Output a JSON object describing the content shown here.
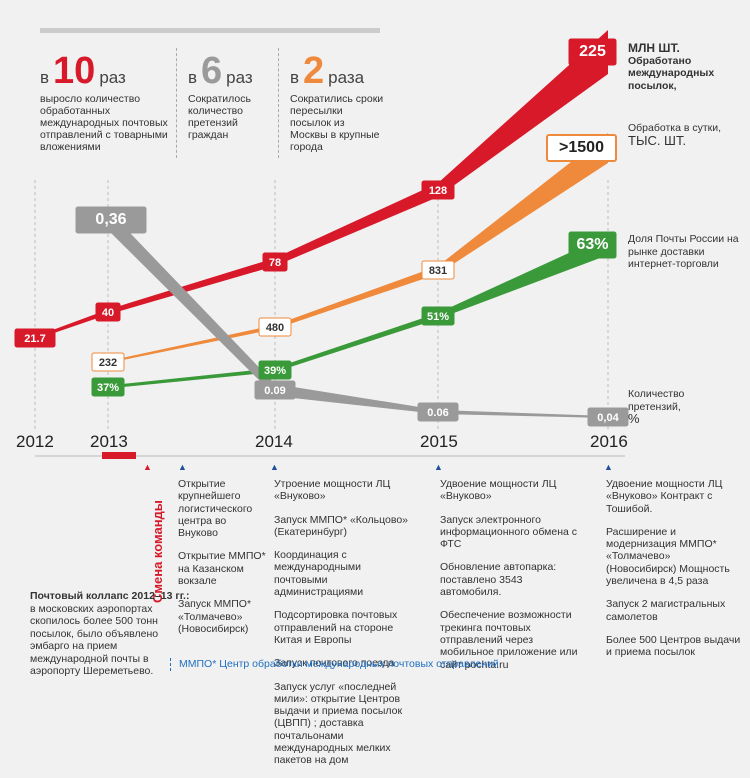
{
  "stats": [
    {
      "prefix": "в",
      "number": "10",
      "suffix": "раз",
      "color": "#d8192a",
      "text": "выросло количество обработанных международных почтовых отправлений с товарными вложениями"
    },
    {
      "prefix": "в",
      "number": "6",
      "suffix": "раз",
      "color": "#9a9a9a",
      "text": "Сократилось количество претензий граждан"
    },
    {
      "prefix": "в",
      "number": "2",
      "suffix": "раза",
      "color": "#ef8a3c",
      "text": "Сократились сроки пересылки посылок из Москвы в крупные города"
    }
  ],
  "right_labels": {
    "red_unit": "МЛН ШТ.",
    "red_text": "Обработано международных посылок,",
    "orange_text": "Обработка в сутки,",
    "orange_unit": "ТЫС. ШТ.",
    "green_text": "Доля Почты России на рынке доставки интернет-торговли",
    "gray_text": "Количество претензий,",
    "gray_unit": "%"
  },
  "chart_data": {
    "type": "line",
    "x": [
      "2012",
      "2013",
      "2014",
      "2015",
      "2016"
    ],
    "series": [
      {
        "color": "#d8192a",
        "points": [
          [
            2012,
            21.7
          ],
          [
            2013,
            40
          ],
          [
            2014,
            78
          ],
          [
            2015,
            128
          ],
          [
            2016,
            225
          ]
        ],
        "labels": [
          "21.7",
          "40",
          "78",
          "128",
          "225"
        ]
      },
      {
        "color": "#ef8a3c",
        "points": [
          [
            2013,
            232
          ],
          [
            2014,
            480
          ],
          [
            2015,
            831
          ],
          [
            2016,
            1500
          ]
        ],
        "labels": [
          "232",
          "480",
          "831",
          ">1500"
        ]
      },
      {
        "color": "#3a9a3a",
        "points": [
          [
            2013,
            37
          ],
          [
            2014,
            39
          ],
          [
            2015,
            51
          ],
          [
            2016,
            63
          ]
        ],
        "labels": [
          "37%",
          "39%",
          "51%",
          "63%"
        ]
      },
      {
        "color": "#9a9a9a",
        "points": [
          [
            2013,
            0.36
          ],
          [
            2014,
            0.09
          ],
          [
            2015,
            0.06
          ],
          [
            2016,
            0.04
          ]
        ],
        "labels": [
          "0,36",
          "0.09",
          "0.06",
          "0,04"
        ]
      }
    ]
  },
  "timeline": {
    "team_change": "Смена команды",
    "collapse_title": "Почтовый коллапс 2012–13 гг.:",
    "collapse_text": "в московских аэропортах скопилось более 500 тонн посылок, было объявлено эмбарго на прием международной почты в аэропорту Шереметьево.",
    "mmpo_note": "ММПО* Центр обработки международных почтовых отправлений",
    "col2013": [
      "Открытие крупнейшего логистического центра во Внуково",
      "Открытие ММПО* на Казанском вокзале",
      "Запуск ММПО* «Толмачево» (Новосибирск)"
    ],
    "col2014": [
      "Утроение мощности ЛЦ «Внуково»",
      "Запуск ММПО* «Кольцово» (Екатеринбург)",
      "Координация с международными почтовыми администрациями",
      "Подсортировка почтовых отправлений на стороне Китая и Европы",
      "Запуск почтового поезда",
      "Запуск услуг «последней мили»: открытие Центров выдачи и приема посылок (ЦВПП) ; доставка почтальонами международных мелких пакетов на дом"
    ],
    "col2015": [
      "Удвоение мощности ЛЦ «Внуково»",
      "Запуск электронного информационного обмена с ФТС",
      "Обновление автопарка: поставлено 3543 автомобиля.",
      "Обеспечение возможности трекинга почтовых отправлений через мобильное приложение или сайт pochta.ru"
    ],
    "col2016": [
      "Удвоение мощности ЛЦ «Внуково» Контракт с Тошибой.",
      "Расширение и модернизация ММПО* «Толмачево» (Новосибирск) Мощность увеличена в 4,5 раза",
      "Запуск 2 магистральных самолетов",
      "Более 500 Центров выдачи и приема посылок"
    ]
  }
}
